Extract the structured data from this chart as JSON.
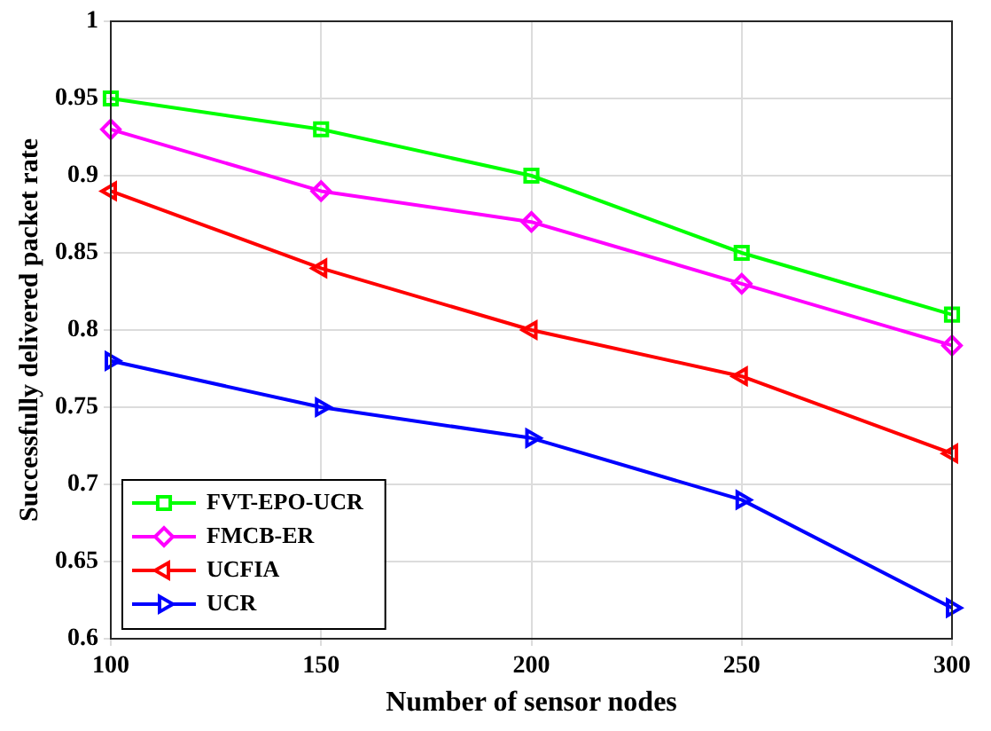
{
  "chart_data": {
    "type": "line",
    "xlabel": "Number of sensor nodes",
    "ylabel": "Successfully delivered packet rate",
    "x": [
      100,
      150,
      200,
      250,
      300
    ],
    "series": [
      {
        "name": "FVT-EPO-UCR",
        "color": "#00ff00",
        "marker": "square",
        "values": [
          0.95,
          0.93,
          0.9,
          0.85,
          0.81
        ]
      },
      {
        "name": "FMCB-ER",
        "color": "#ff00ff",
        "marker": "diamond",
        "values": [
          0.93,
          0.89,
          0.87,
          0.83,
          0.79
        ]
      },
      {
        "name": "UCFIA",
        "color": "#ff0000",
        "marker": "triangle",
        "values": [
          0.89,
          0.84,
          0.8,
          0.77,
          0.72
        ]
      },
      {
        "name": "UCR",
        "color": "#0000ff",
        "marker": "triangle",
        "values": [
          0.78,
          0.75,
          0.73,
          0.69,
          0.62
        ]
      }
    ],
    "xlim": [
      100,
      300
    ],
    "xticks": [
      100,
      150,
      200,
      250,
      300
    ],
    "ylim": [
      0.6,
      1
    ],
    "yticks": [
      0.6,
      0.65,
      0.7,
      0.75,
      0.8,
      0.85,
      0.9,
      0.95,
      1
    ],
    "grid": true,
    "legend": "bottom left",
    "line_style": "solid"
  }
}
